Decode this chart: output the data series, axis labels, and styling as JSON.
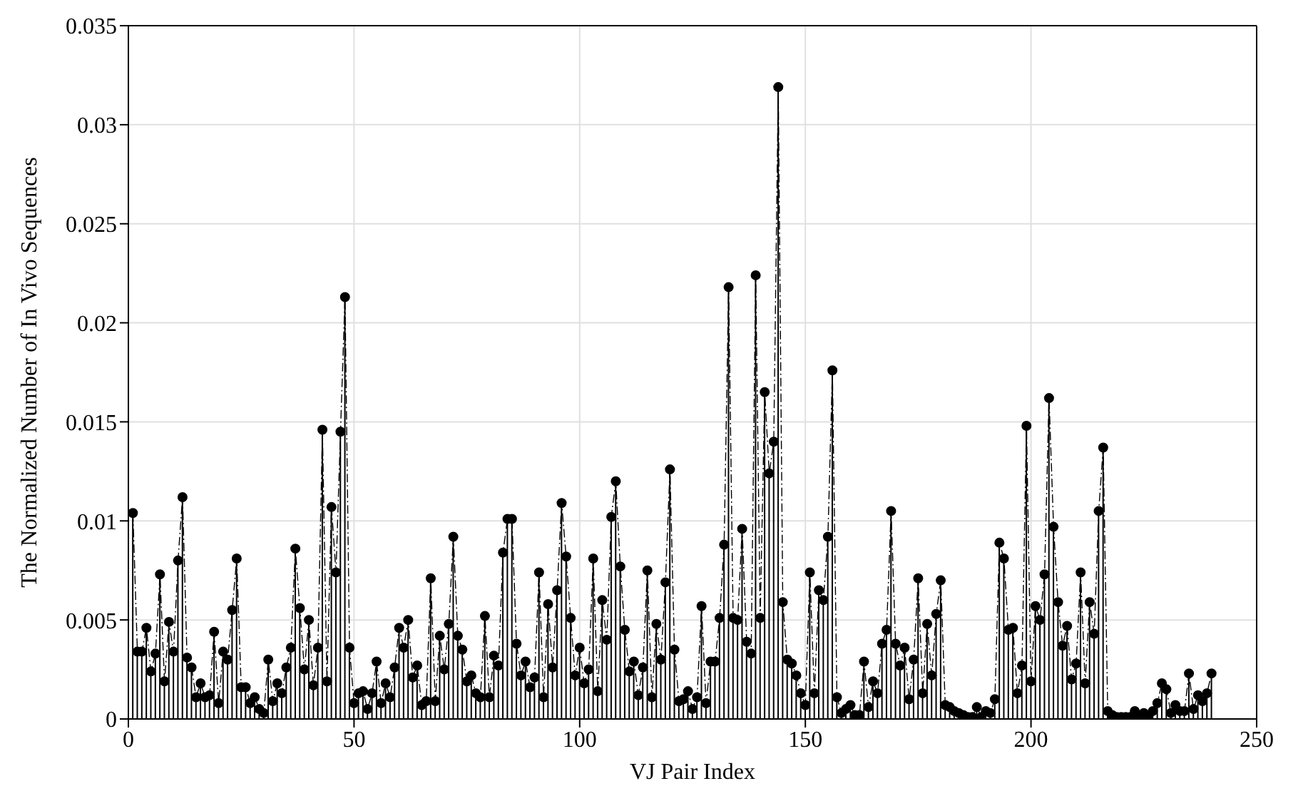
{
  "chart_data": {
    "type": "lollipop",
    "xlabel": "VJ Pair Index",
    "ylabel": "The Normalized Number of In Vivo Sequences",
    "x": [
      1,
      2,
      3,
      4,
      5,
      6,
      7,
      8,
      9,
      10,
      11,
      12,
      13,
      14,
      15,
      16,
      17,
      18,
      19,
      20,
      21,
      22,
      23,
      24,
      25,
      26,
      27,
      28,
      29,
      30,
      31,
      32,
      33,
      34,
      35,
      36,
      37,
      38,
      39,
      40,
      41,
      42,
      43,
      44,
      45,
      46,
      47,
      48,
      49,
      50,
      51,
      52,
      53,
      54,
      55,
      56,
      57,
      58,
      59,
      60,
      61,
      62,
      63,
      64,
      65,
      66,
      67,
      68,
      69,
      70,
      71,
      72,
      73,
      74,
      75,
      76,
      77,
      78,
      79,
      80,
      81,
      82,
      83,
      84,
      85,
      86,
      87,
      88,
      89,
      90,
      91,
      92,
      93,
      94,
      95,
      96,
      97,
      98,
      99,
      100,
      101,
      102,
      103,
      104,
      105,
      106,
      107,
      108,
      109,
      110,
      111,
      112,
      113,
      114,
      115,
      116,
      117,
      118,
      119,
      120,
      121,
      122,
      123,
      124,
      125,
      126,
      127,
      128,
      129,
      130,
      131,
      132,
      133,
      134,
      135,
      136,
      137,
      138,
      139,
      140,
      141,
      142,
      143,
      144,
      145,
      146,
      147,
      148,
      149,
      150,
      151,
      152,
      153,
      154,
      155,
      156,
      157,
      158,
      159,
      160,
      161,
      162,
      163,
      164,
      165,
      166,
      167,
      168,
      169,
      170,
      171,
      172,
      173,
      174,
      175,
      176,
      177,
      178,
      179,
      180,
      181,
      182,
      183,
      184,
      185,
      186,
      187,
      188,
      189,
      190,
      191,
      192,
      193,
      194,
      195,
      196,
      197,
      198,
      199,
      200,
      201,
      202,
      203,
      204,
      205,
      206,
      207,
      208,
      209,
      210,
      211,
      212,
      213,
      214,
      215,
      216,
      217,
      218,
      219,
      220,
      221,
      222,
      223,
      224,
      225,
      226,
      227,
      228,
      229,
      230,
      231,
      232,
      233,
      234,
      235,
      236,
      237,
      238,
      239,
      240
    ],
    "series": [
      {
        "color": "#000000",
        "marker": "circle",
        "values": [
          0.0104,
          0.0034,
          0.0034,
          0.0046,
          0.0024,
          0.0033,
          0.0073,
          0.0019,
          0.0049,
          0.0034,
          0.008,
          0.0112,
          0.0031,
          0.0026,
          0.0011,
          0.0018,
          0.0011,
          0.0012,
          0.0044,
          0.0008,
          0.0034,
          0.003,
          0.0055,
          0.0081,
          0.0016,
          0.0016,
          0.0008,
          0.0011,
          0.0005,
          0.0003,
          0.003,
          0.0009,
          0.0018,
          0.0013,
          0.0026,
          0.0036,
          0.0086,
          0.0056,
          0.0025,
          0.005,
          0.0017,
          0.0036,
          0.0146,
          0.0019,
          0.0107,
          0.0074,
          0.0145,
          0.0213,
          0.0036,
          0.0008,
          0.0013,
          0.0014,
          0.0005,
          0.0013,
          0.0029,
          0.0008,
          0.0018,
          0.0011,
          0.0026,
          0.0046,
          0.0036,
          0.005,
          0.0021,
          0.0027,
          0.0007,
          0.0009,
          0.0071,
          0.0009,
          0.0042,
          0.0025,
          0.0048,
          0.0092,
          0.0042,
          0.0035,
          0.0019,
          0.0022,
          0.0013,
          0.0011,
          0.0052,
          0.0011,
          0.0032,
          0.0027,
          0.0084,
          0.0101,
          0.0101,
          0.0038,
          0.0022,
          0.0029,
          0.0016,
          0.0021,
          0.0074,
          0.0011,
          0.0058,
          0.0026,
          0.0065,
          0.0109,
          0.0082,
          0.0051,
          0.0022,
          0.0036,
          0.0018,
          0.0025,
          0.0081,
          0.0014,
          0.006,
          0.004,
          0.0102,
          0.012,
          0.0077,
          0.0045,
          0.0024,
          0.0029,
          0.0012,
          0.0026,
          0.0075,
          0.0011,
          0.0048,
          0.003,
          0.0069,
          0.0126,
          0.0035,
          0.0009,
          0.001,
          0.0014,
          0.0005,
          0.0011,
          0.0057,
          0.0008,
          0.0029,
          0.0029,
          0.0051,
          0.0088,
          0.0218,
          0.0051,
          0.005,
          0.0096,
          0.0039,
          0.0033,
          0.0224,
          0.0051,
          0.0165,
          0.0124,
          0.014,
          0.0319,
          0.0059,
          0.003,
          0.0028,
          0.0022,
          0.0013,
          0.0007,
          0.0074,
          0.0013,
          0.0065,
          0.006,
          0.0092,
          0.0176,
          0.0011,
          0.0003,
          0.0005,
          0.0007,
          0.0002,
          0.0002,
          0.0029,
          0.0006,
          0.0019,
          0.0013,
          0.0038,
          0.0045,
          0.0105,
          0.0038,
          0.0027,
          0.0036,
          0.001,
          0.003,
          0.0071,
          0.0013,
          0.0048,
          0.0022,
          0.0053,
          0.007,
          0.0007,
          0.0006,
          0.0004,
          0.0003,
          0.0002,
          0.0001,
          0.0001,
          0.0006,
          0.0001,
          0.0004,
          0.0003,
          0.001,
          0.0089,
          0.0081,
          0.0045,
          0.0046,
          0.0013,
          0.0027,
          0.0148,
          0.0019,
          0.0057,
          0.005,
          0.0073,
          0.0162,
          0.0097,
          0.0059,
          0.0037,
          0.0047,
          0.002,
          0.0028,
          0.0074,
          0.0018,
          0.0059,
          0.0043,
          0.0105,
          0.0137,
          0.0004,
          0.0002,
          0.0001,
          0.0001,
          0.0001,
          0.0001,
          0.0004,
          0.0001,
          0.0003,
          0.0002,
          0.0004,
          0.0008,
          0.0018,
          0.0015,
          0.0003,
          0.0007,
          0.0004,
          0.0004,
          0.0023,
          0.0005,
          0.0012,
          0.0009,
          0.0013,
          0.0023
        ]
      },
      {
        "type": "line",
        "color": "#000000",
        "marker": "none",
        "line_style": "dashed",
        "values": [
          0.0104,
          0.0034,
          0.0034,
          0.0046,
          0.0024,
          0.0033,
          0.0073,
          0.0019,
          0.0049,
          0.0034,
          0.008,
          0.0112,
          0.0031,
          0.0026,
          0.0011,
          0.0018,
          0.0011,
          0.0012,
          0.0044,
          0.0008,
          0.0034,
          0.003,
          0.0055,
          0.0081,
          0.0016,
          0.0016,
          0.0008,
          0.0011,
          0.0005,
          0.0003,
          0.003,
          0.0009,
          0.0018,
          0.0013,
          0.0026,
          0.0036,
          0.0086,
          0.0056,
          0.0025,
          0.005,
          0.0017,
          0.0036,
          0.0146,
          0.0019,
          0.0107,
          0.0074,
          0.0145,
          0.0213,
          0.0036,
          0.0008,
          0.0013,
          0.0014,
          0.0005,
          0.0013,
          0.0029,
          0.0008,
          0.0018,
          0.0011,
          0.0026,
          0.0046,
          0.0036,
          0.005,
          0.0021,
          0.0027,
          0.0007,
          0.0009,
          0.0071,
          0.0009,
          0.0042,
          0.0025,
          0.0048,
          0.0092,
          0.0042,
          0.0035,
          0.0019,
          0.0022,
          0.0013,
          0.0011,
          0.0052,
          0.0011,
          0.0032,
          0.0027,
          0.0084,
          0.0101,
          0.0101,
          0.0038,
          0.0022,
          0.0029,
          0.0016,
          0.0021,
          0.0074,
          0.0011,
          0.0058,
          0.0026,
          0.0065,
          0.0109,
          0.0082,
          0.0051,
          0.0022,
          0.0036,
          0.0018,
          0.0025,
          0.0081,
          0.0014,
          0.006,
          0.004,
          0.0102,
          0.012,
          0.0077,
          0.0045,
          0.0024,
          0.0029,
          0.0012,
          0.0026,
          0.0075,
          0.0011,
          0.0048,
          0.003,
          0.0069,
          0.0126,
          0.0035,
          0.0009,
          0.001,
          0.0014,
          0.0005,
          0.0011,
          0.0057,
          0.0008,
          0.0029,
          0.0029,
          0.0051,
          0.0088,
          0.0218,
          0.0051,
          0.005,
          0.0096,
          0.0039,
          0.0033,
          0.0224,
          0.0051,
          0.0165,
          0.0124,
          0.014,
          0.0319,
          0.0059,
          0.003,
          0.0028,
          0.0022,
          0.0013,
          0.0007,
          0.0074,
          0.0013,
          0.0065,
          0.006,
          0.0092,
          0.0176,
          0.0011,
          0.0003,
          0.0005,
          0.0007,
          0.0002,
          0.0002,
          0.0029,
          0.0006,
          0.0019,
          0.0013,
          0.0038,
          0.0045,
          0.0105,
          0.0038,
          0.0027,
          0.0036,
          0.001,
          0.003,
          0.0071,
          0.0013,
          0.0048,
          0.0022,
          0.0053,
          0.007,
          0.0007,
          0.0006,
          0.0004,
          0.0003,
          0.0002,
          0.0001,
          0.0001,
          0.0006,
          0.0001,
          0.0004,
          0.0003,
          0.001,
          0.0089,
          0.0081,
          0.0045,
          0.0046,
          0.0013,
          0.0027,
          0.0148,
          0.0019,
          0.0057,
          0.005,
          0.0073,
          0.0162,
          0.0097,
          0.0059,
          0.0037,
          0.0047,
          0.002,
          0.0028,
          0.0074,
          0.0018,
          0.0059,
          0.0043,
          0.0105,
          0.0137,
          0.0004,
          0.0002,
          0.0001,
          0.0001,
          0.0001,
          0.0001,
          0.0004,
          0.0001,
          0.0003,
          0.0002,
          0.0004,
          0.0008,
          0.0018,
          0.0015,
          0.0003,
          0.0007,
          0.0004,
          0.0004,
          0.0023,
          0.0005,
          0.0012,
          0.0009,
          0.0013,
          0.0023
        ]
      }
    ],
    "xlim": [
      0,
      250
    ],
    "xticks": [
      0,
      50,
      100,
      150,
      200,
      250
    ],
    "ylim": [
      0,
      0.035
    ],
    "yticks": [
      0,
      0.005,
      0.01,
      0.015,
      0.02,
      0.025,
      0.03,
      0.035
    ],
    "grid": true
  }
}
